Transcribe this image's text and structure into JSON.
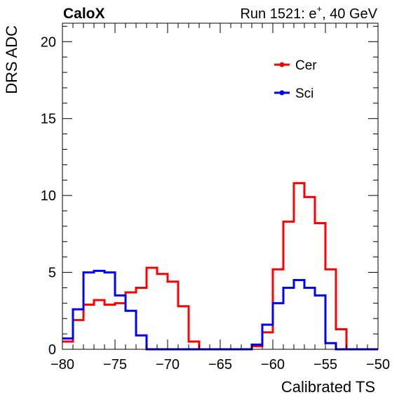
{
  "header": {
    "experiment": "CaloX",
    "run_prefix": "Run 1521: e",
    "run_superscript": "+",
    "run_suffix": ", 40 GeV"
  },
  "chart_data": {
    "type": "line",
    "step": true,
    "xlabel": "Calibrated TS",
    "ylabel": "DRS ADC",
    "xlim": [
      -80,
      -50
    ],
    "ylim": [
      0,
      21.2
    ],
    "xticks": [
      -80,
      -75,
      -70,
      -65,
      -60,
      -55,
      -50
    ],
    "xtick_labels": [
      "−80",
      "−75",
      "−70",
      "−65",
      "−60",
      "−55",
      "−50"
    ],
    "yticks": [
      0,
      5,
      10,
      15,
      20
    ],
    "ytick_labels": [
      "0",
      "5",
      "10",
      "15",
      "20"
    ],
    "bin_edges_start": -80,
    "bin_width": 1,
    "legend": {
      "position": "top-right"
    },
    "series": [
      {
        "name": "Cer",
        "color": "#ff0000",
        "values": [
          0.5,
          1.9,
          2.9,
          3.2,
          2.9,
          3.0,
          3.7,
          4.0,
          5.3,
          4.9,
          4.4,
          2.8,
          0.5,
          0,
          0,
          0,
          0,
          0,
          0.2,
          1.1,
          5.2,
          8.3,
          10.8,
          9.9,
          8.2,
          5.2,
          1.3,
          0,
          0,
          0
        ]
      },
      {
        "name": "Sci",
        "color": "#0000ff",
        "values": [
          0.7,
          2.6,
          5.0,
          5.1,
          5.0,
          3.5,
          2.5,
          0.9,
          0,
          0,
          0,
          0,
          0,
          0,
          0,
          0,
          0,
          0,
          0.3,
          1.6,
          3.0,
          4.0,
          4.5,
          4.0,
          3.5,
          0.4,
          0,
          0,
          0,
          0
        ]
      }
    ]
  }
}
